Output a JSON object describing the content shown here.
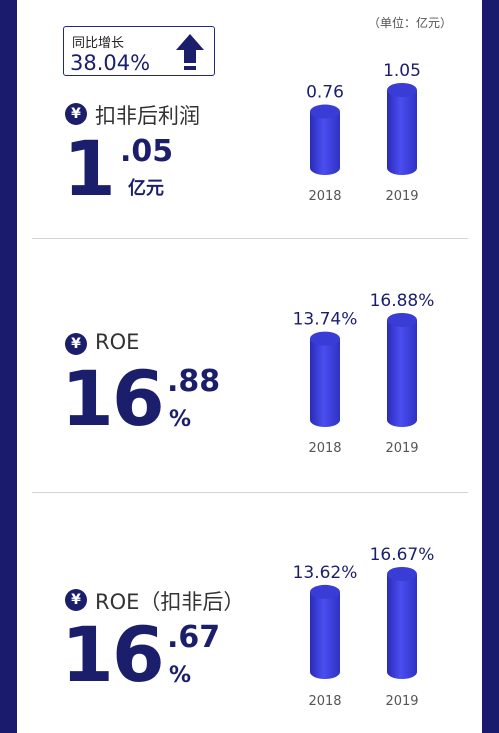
{
  "unit_note": "（单位：亿元）",
  "colors": {
    "frame": "#1b1b6e",
    "accent": "#1b1f6b",
    "bar_light": "#4b4ef0",
    "bar_dark": "#2a2bb8"
  },
  "badge": {
    "label": "同比增长",
    "value": "38.04%",
    "icon": "up-arrow-icon"
  },
  "metrics": [
    {
      "icon": "yen-icon",
      "symbol": "¥",
      "label": "扣非后利润",
      "int": "1",
      "dec": ".05",
      "unit": "亿元"
    },
    {
      "icon": "yen-icon",
      "symbol": "¥",
      "label": "ROE",
      "int": "16",
      "dec": ".88",
      "unit": "%"
    },
    {
      "icon": "yen-icon",
      "symbol": "¥",
      "label": "ROE（扣非后）",
      "int": "16",
      "dec": ".67",
      "unit": "%"
    }
  ],
  "chart_data": [
    {
      "type": "bar",
      "categories": [
        "2018",
        "2019"
      ],
      "values": [
        0.76,
        1.05
      ],
      "labels": [
        "0.76",
        "1.05"
      ]
    },
    {
      "type": "bar",
      "categories": [
        "2018",
        "2019"
      ],
      "values": [
        13.74,
        16.88
      ],
      "labels": [
        "13.74%",
        "16.88%"
      ]
    },
    {
      "type": "bar",
      "categories": [
        "2018",
        "2019"
      ],
      "values": [
        13.62,
        16.67
      ],
      "labels": [
        "13.62%",
        "16.67%"
      ]
    }
  ]
}
